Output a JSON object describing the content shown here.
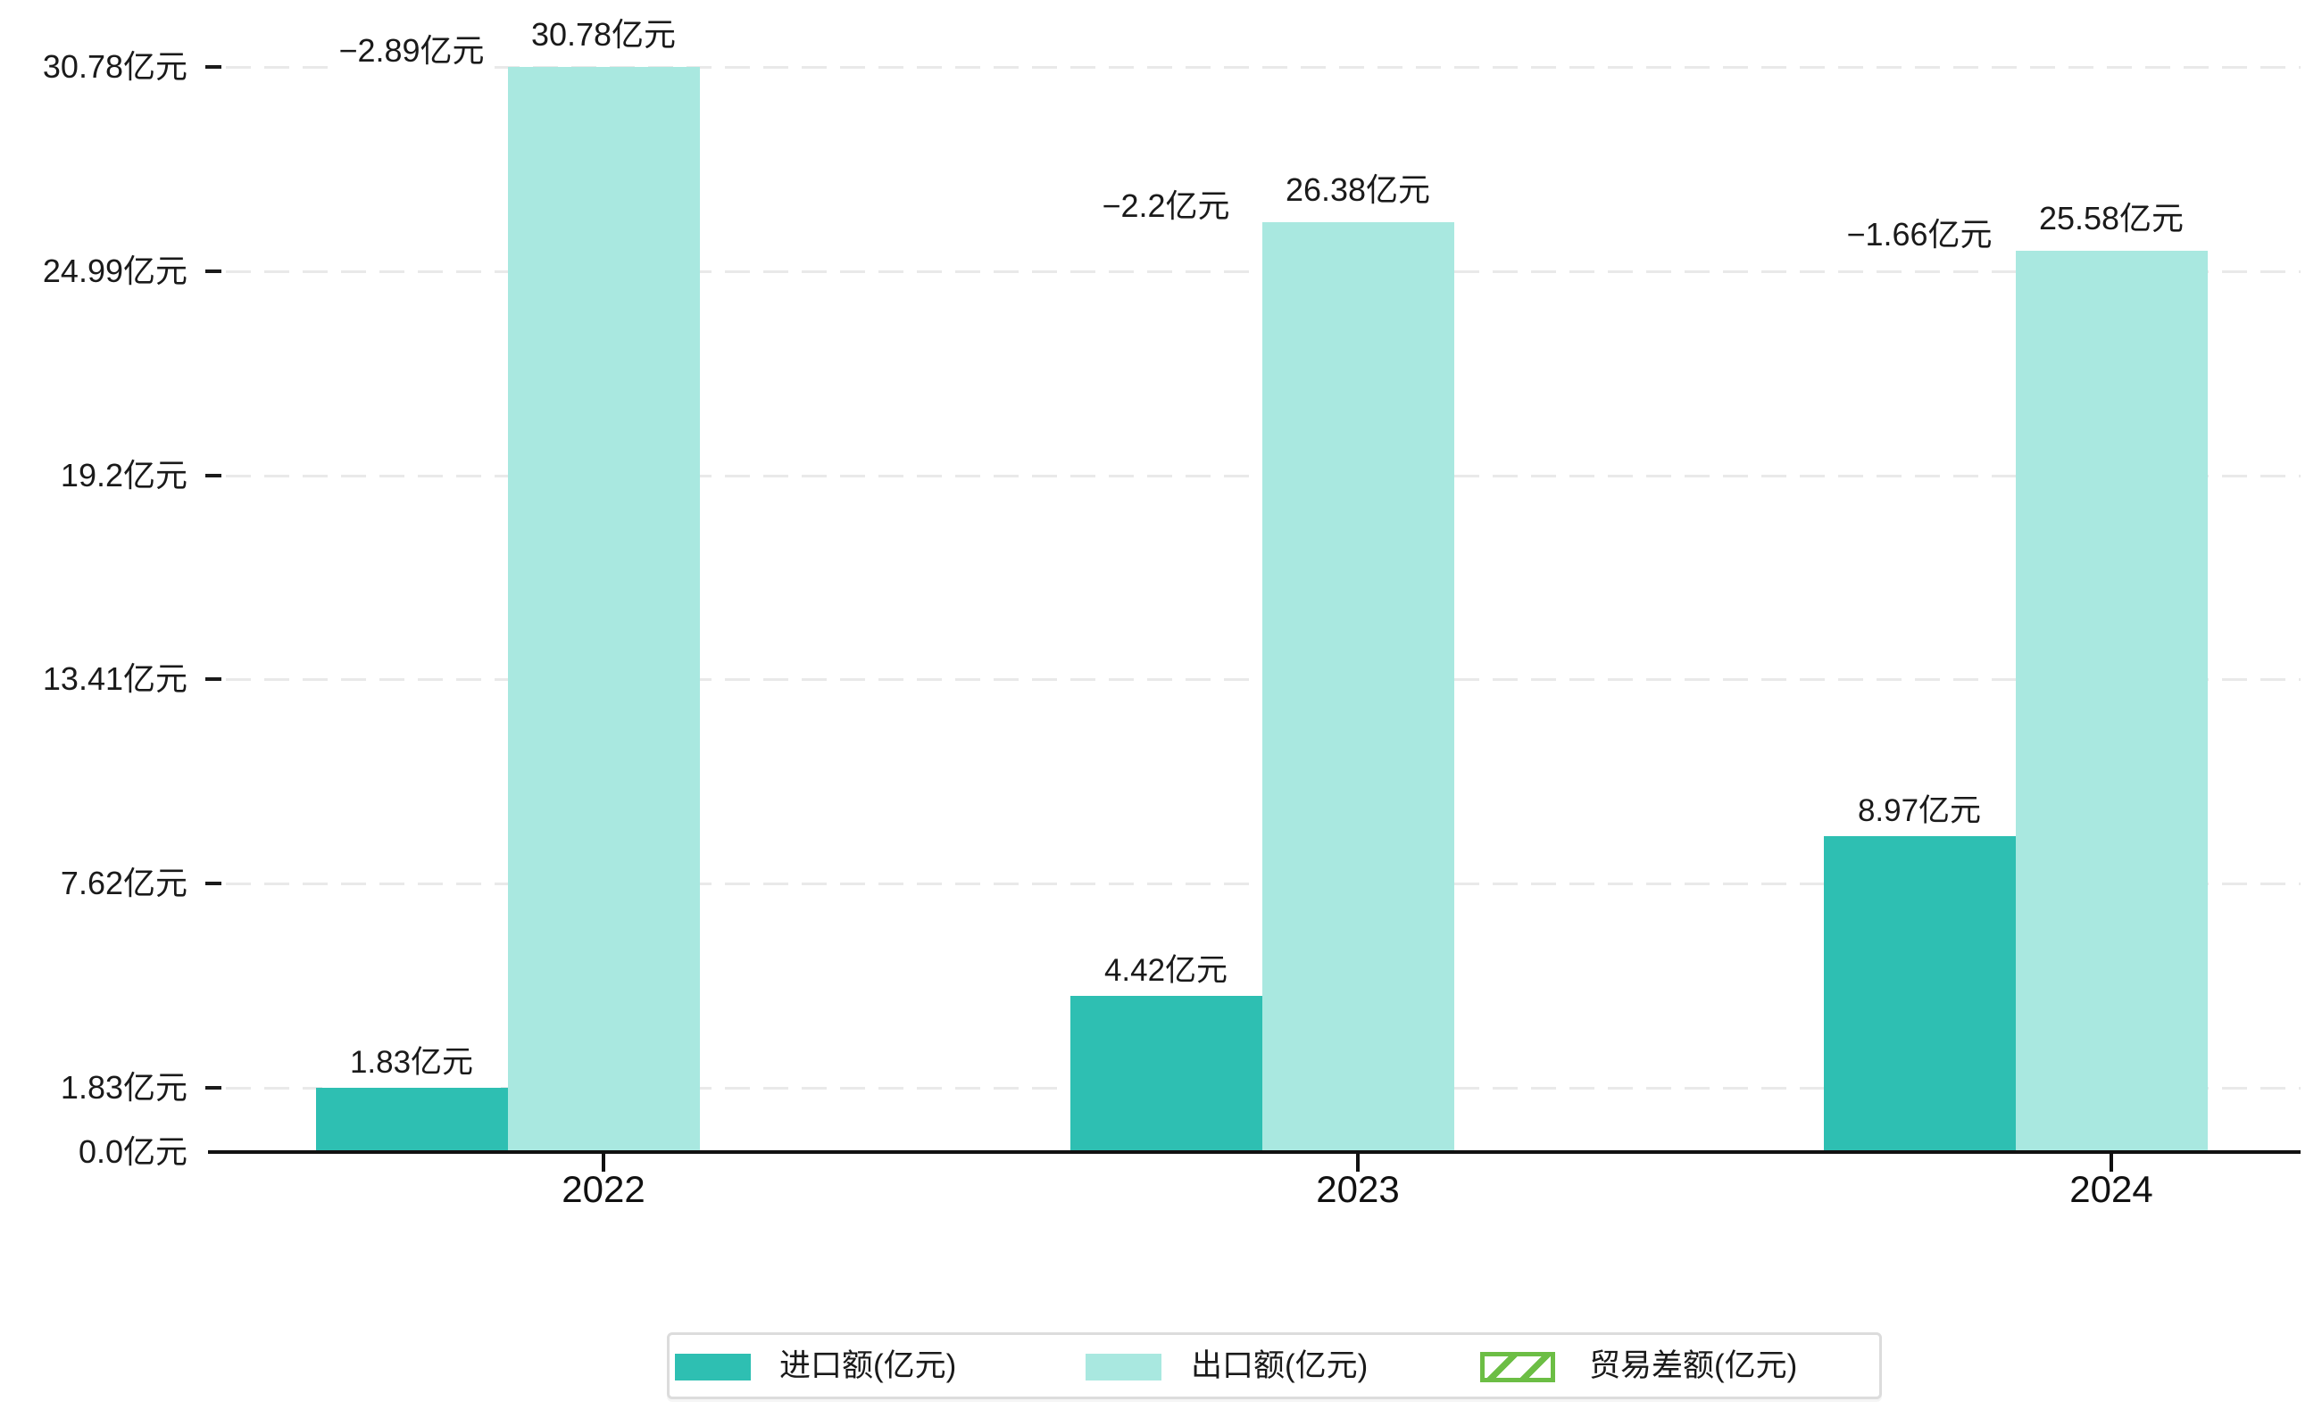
{
  "chart_data": {
    "type": "bar",
    "title": "",
    "categories": [
      "2022",
      "2023",
      "2024"
    ],
    "series": [
      {
        "name": "进口额(亿元)",
        "role": "import",
        "values": [
          1.83,
          4.42,
          8.97
        ],
        "labels": [
          "1.83亿元",
          "4.42亿元",
          "8.97亿元"
        ],
        "color": "#2EBFB2"
      },
      {
        "name": "出口额(亿元)",
        "role": "export",
        "values": [
          30.78,
          26.38,
          25.58
        ],
        "labels": [
          "30.78亿元",
          "26.38亿元",
          "25.58亿元"
        ],
        "color": "#A9E8E0"
      },
      {
        "name": "贸易差额(亿元)",
        "role": "trade-balance",
        "values": [
          -2.89,
          -2.2,
          -1.66
        ],
        "labels": [
          "−2.89亿元",
          "−2.2亿元",
          "−1.66亿元"
        ],
        "color": "#6CBE45",
        "style": "hatched",
        "note": "hatched band drawn between import top and export top in the import column"
      }
    ],
    "yticks": [
      {
        "value": 0.0,
        "label": "0.0亿元"
      },
      {
        "value": 1.83,
        "label": "1.83亿元"
      },
      {
        "value": 7.62,
        "label": "7.62亿元"
      },
      {
        "value": 13.41,
        "label": "13.41亿元"
      },
      {
        "value": 19.2,
        "label": "19.2亿元"
      },
      {
        "value": 24.99,
        "label": "24.99亿元"
      },
      {
        "value": 30.78,
        "label": "30.78亿元"
      }
    ],
    "ylim": [
      0,
      30.78
    ],
    "xlabel": "",
    "ylabel": "",
    "grid": "horizontal-dashed",
    "legend_position": "bottom-center",
    "legend": [
      "进口额(亿元)",
      "出口额(亿元)",
      "贸易差额(亿元)"
    ]
  },
  "colors": {
    "import_bar": "#2EBFB2",
    "export_bar": "#A9E8E0",
    "hatch_green": "#6CBE45",
    "gridline": "#E9E9E9",
    "axis": "#111111",
    "text": "#1A1A1A",
    "legend_border": "#DCDCDC",
    "background": "#FFFFFF"
  }
}
